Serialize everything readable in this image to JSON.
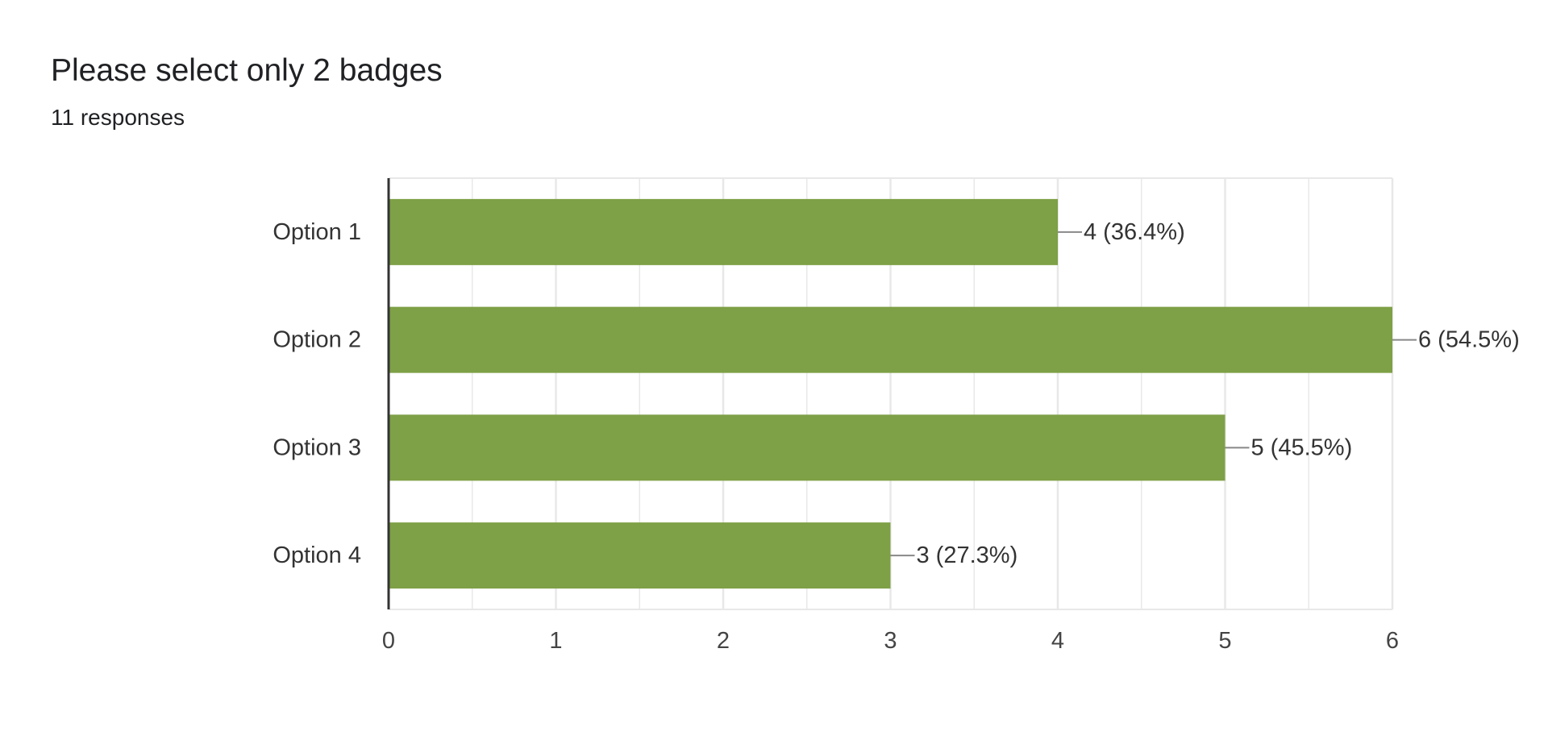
{
  "question": {
    "title": "Please select only 2 badges",
    "responses": "11 responses"
  },
  "colors": {
    "bar": "#7ea046",
    "grid": "#e8e8e8",
    "axis": "#333333",
    "leader": "#888888",
    "text": "#333333"
  },
  "chart_data": {
    "type": "bar",
    "orientation": "horizontal",
    "title": "Please select only 2 badges",
    "subtitle": "11 responses",
    "categories": [
      "Option 1",
      "Option 2",
      "Option 3",
      "Option 4"
    ],
    "values": [
      4,
      6,
      5,
      3
    ],
    "data_labels": [
      "4 (36.4%)",
      "6 (54.5%)",
      "5 (45.5%)",
      "3 (27.3%)"
    ],
    "xlim": [
      0,
      6
    ],
    "x_ticks": [
      "0",
      "1",
      "2",
      "3",
      "4",
      "5",
      "6"
    ],
    "grid": true,
    "legend": "none",
    "xlabel": "",
    "ylabel": ""
  }
}
